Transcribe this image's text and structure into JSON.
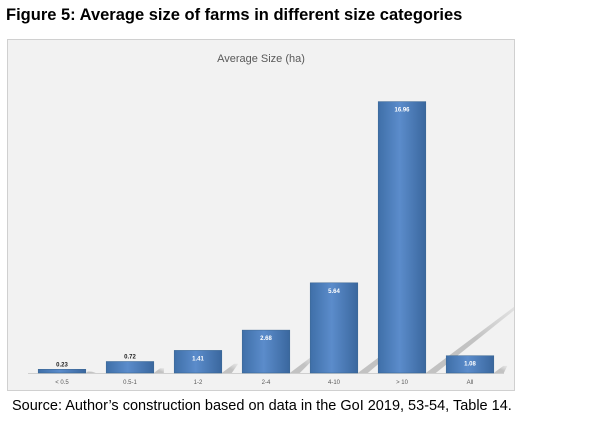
{
  "figure": {
    "title": "Figure 5: Average size of farms in different size categories",
    "source": "Source: Author’s construction based on data in the GoI 2019, 53-54, Table 14."
  },
  "chart_data": {
    "type": "bar",
    "title": "Average Size (ha)",
    "categories": [
      "< 0.5",
      "0.5-1",
      "1-2",
      "2-4",
      "4-10",
      "> 10",
      "All"
    ],
    "values": [
      0.23,
      0.72,
      1.41,
      2.68,
      5.64,
      16.96,
      1.08
    ],
    "value_labels": [
      "0.23",
      "0.72",
      "1.41",
      "2.68",
      "5.64",
      "16.96",
      "1.08"
    ],
    "ylim": [
      0,
      18
    ],
    "grid": false,
    "legend": "none",
    "bar_color": "#4f81bd"
  }
}
